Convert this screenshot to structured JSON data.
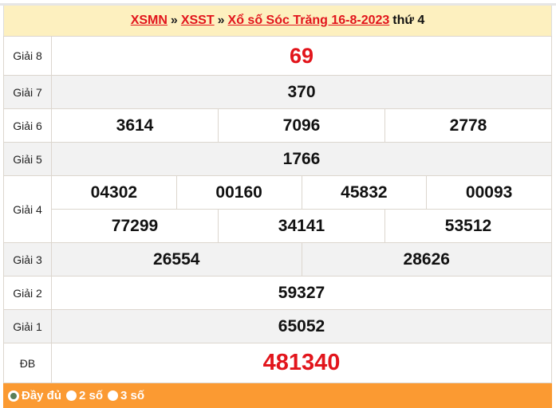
{
  "breadcrumb": {
    "xsmn": "XSMN",
    "xsst": "XSST",
    "title": "Xổ số Sóc Trăng 16-8-2023",
    "day": "thứ 4",
    "separator": "»"
  },
  "prizes": {
    "g8": {
      "label": "Giải 8",
      "values": [
        "69"
      ]
    },
    "g7": {
      "label": "Giải 7",
      "values": [
        "370"
      ]
    },
    "g6": {
      "label": "Giải 6",
      "values": [
        "3614",
        "7096",
        "2778"
      ]
    },
    "g5": {
      "label": "Giải 5",
      "values": [
        "1766"
      ]
    },
    "g4": {
      "label": "Giải 4",
      "values": [
        "04302",
        "00160",
        "45832",
        "00093",
        "77299",
        "34141",
        "53512"
      ]
    },
    "g3": {
      "label": "Giải 3",
      "values": [
        "26554",
        "28626"
      ]
    },
    "g2": {
      "label": "Giải 2",
      "values": [
        "59327"
      ]
    },
    "g1": {
      "label": "Giải 1",
      "values": [
        "65052"
      ]
    },
    "db": {
      "label": "ĐB",
      "values": [
        "481340"
      ]
    }
  },
  "footer": {
    "options": [
      {
        "label": "Đầy đủ",
        "selected": true
      },
      {
        "label": "2 số",
        "selected": false
      },
      {
        "label": "3 số",
        "selected": false
      }
    ]
  },
  "colors": {
    "accent_red": "#e2151c",
    "header_bg": "#fdf0bf",
    "footer_bg": "#fb9a32"
  }
}
